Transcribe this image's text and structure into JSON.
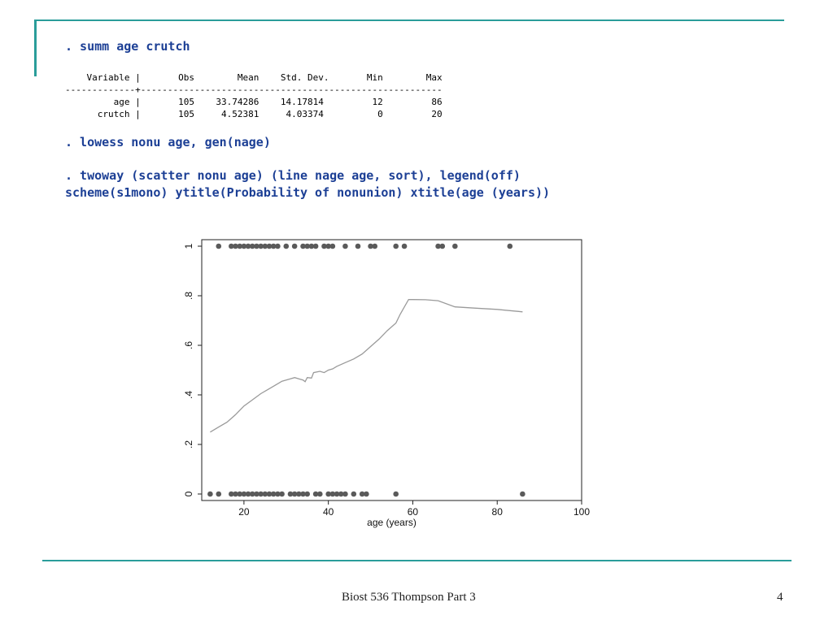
{
  "slide": {
    "cmd1": ". summ age crutch",
    "summary_lines": [
      "    Variable |       Obs        Mean    Std. Dev.       Min        Max",
      "-------------+--------------------------------------------------------",
      "         age |       105    33.74286    14.17814         12         86",
      "      crutch |       105     4.52381     4.03374          0         20"
    ],
    "cmd2": ". lowess nonu age, gen(nage)",
    "cmd3_line1": ". twoway (scatter nonu age) (line nage age, sort), legend(off)",
    "cmd3_line2": "scheme(s1mono) ytitle(Probability of nonunion) xtitle(age (years))",
    "footer_text": "Biost 536 Thompson Part 3",
    "page_number": "4"
  },
  "colors": {
    "accent": "#2a9d9a",
    "command_text": "#1c3f95",
    "points": "#5a5a5a",
    "line": "#9a9a9a"
  },
  "chart_data": {
    "type": "scatter",
    "xlabel": "age (years)",
    "ylabel": "",
    "xlim": [
      10,
      100
    ],
    "ylim": [
      0,
      1
    ],
    "xticks": [
      20,
      40,
      60,
      80,
      100
    ],
    "xtick_labels": [
      "20",
      "40",
      "60",
      "80",
      "100"
    ],
    "yticks": [
      0,
      0.2,
      0.4,
      0.6,
      0.8,
      1
    ],
    "ytick_labels": [
      "0",
      ".2",
      ".4",
      ".6",
      ".8",
      "1"
    ],
    "grid": false,
    "legend": "off",
    "series": [
      {
        "type": "scatter",
        "points": [
          [
            14,
            1
          ],
          [
            17,
            1
          ],
          [
            18,
            1
          ],
          [
            19,
            1
          ],
          [
            20,
            1
          ],
          [
            21,
            1
          ],
          [
            22,
            1
          ],
          [
            23,
            1
          ],
          [
            24,
            1
          ],
          [
            25,
            1
          ],
          [
            26,
            1
          ],
          [
            27,
            1
          ],
          [
            28,
            1
          ],
          [
            30,
            1
          ],
          [
            32,
            1
          ],
          [
            34,
            1
          ],
          [
            35,
            1
          ],
          [
            36,
            1
          ],
          [
            37,
            1
          ],
          [
            39,
            1
          ],
          [
            40,
            1
          ],
          [
            41,
            1
          ],
          [
            44,
            1
          ],
          [
            47,
            1
          ],
          [
            50,
            1
          ],
          [
            51,
            1
          ],
          [
            56,
            1
          ],
          [
            58,
            1
          ],
          [
            66,
            1
          ],
          [
            67,
            1
          ],
          [
            70,
            1
          ],
          [
            83,
            1
          ],
          [
            12,
            0
          ],
          [
            14,
            0
          ],
          [
            17,
            0
          ],
          [
            18,
            0
          ],
          [
            19,
            0
          ],
          [
            20,
            0
          ],
          [
            21,
            0
          ],
          [
            22,
            0
          ],
          [
            23,
            0
          ],
          [
            24,
            0
          ],
          [
            25,
            0
          ],
          [
            26,
            0
          ],
          [
            27,
            0
          ],
          [
            28,
            0
          ],
          [
            29,
            0
          ],
          [
            31,
            0
          ],
          [
            32,
            0
          ],
          [
            33,
            0
          ],
          [
            34,
            0
          ],
          [
            35,
            0
          ],
          [
            37,
            0
          ],
          [
            38,
            0
          ],
          [
            40,
            0
          ],
          [
            41,
            0
          ],
          [
            42,
            0
          ],
          [
            43,
            0
          ],
          [
            44,
            0
          ],
          [
            46,
            0
          ],
          [
            48,
            0
          ],
          [
            49,
            0
          ],
          [
            56,
            0
          ],
          [
            86,
            0
          ]
        ]
      },
      {
        "type": "line",
        "points": [
          [
            12,
            0.25
          ],
          [
            14,
            0.27
          ],
          [
            16,
            0.29
          ],
          [
            18,
            0.32
          ],
          [
            20,
            0.355
          ],
          [
            22,
            0.38
          ],
          [
            24,
            0.405
          ],
          [
            26,
            0.425
          ],
          [
            28,
            0.445
          ],
          [
            29,
            0.455
          ],
          [
            30,
            0.46
          ],
          [
            31,
            0.465
          ],
          [
            32,
            0.47
          ],
          [
            33,
            0.465
          ],
          [
            34,
            0.46
          ],
          [
            34.5,
            0.453
          ],
          [
            35,
            0.47
          ],
          [
            36,
            0.468
          ],
          [
            36.5,
            0.49
          ],
          [
            38,
            0.495
          ],
          [
            39,
            0.49
          ],
          [
            40,
            0.5
          ],
          [
            41,
            0.505
          ],
          [
            42,
            0.515
          ],
          [
            44,
            0.53
          ],
          [
            46,
            0.545
          ],
          [
            48,
            0.565
          ],
          [
            50,
            0.595
          ],
          [
            52,
            0.625
          ],
          [
            54,
            0.66
          ],
          [
            56,
            0.69
          ],
          [
            57,
            0.725
          ],
          [
            59,
            0.785
          ],
          [
            63,
            0.784
          ],
          [
            66,
            0.78
          ],
          [
            70,
            0.755
          ],
          [
            75,
            0.75
          ],
          [
            80,
            0.745
          ],
          [
            86,
            0.735
          ]
        ]
      }
    ]
  }
}
